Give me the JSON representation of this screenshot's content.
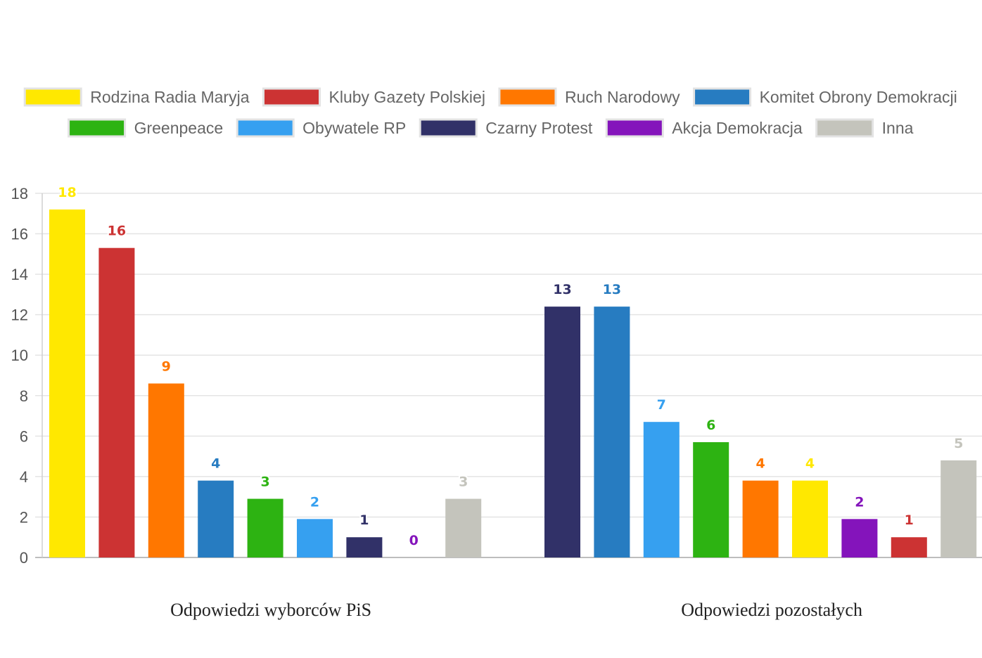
{
  "chart_data": {
    "type": "bar",
    "categories": [
      "Odpowiedzi wyborców PiS",
      "Odpowiedzi pozostałych"
    ],
    "ylim": [
      0,
      18
    ],
    "y_ticks": [
      0,
      2,
      4,
      6,
      8,
      10,
      12,
      14,
      16,
      18
    ],
    "grid": true,
    "legend_position": "top",
    "groups": [
      {
        "category": "Odpowiedzi wyborców PiS",
        "bars": [
          {
            "series": "Rodzina Radia Maryja",
            "value": 17.2,
            "label": "18"
          },
          {
            "series": "Kluby Gazety Polskiej",
            "value": 15.3,
            "label": "16"
          },
          {
            "series": "Ruch Narodowy",
            "value": 8.6,
            "label": "9"
          },
          {
            "series": "Komitet Obrony Demokracji",
            "value": 3.8,
            "label": "4"
          },
          {
            "series": "Greenpeace",
            "value": 2.9,
            "label": "3"
          },
          {
            "series": "Obywatele RP",
            "value": 1.9,
            "label": "2"
          },
          {
            "series": "Czarny Protest",
            "value": 1.0,
            "label": "1"
          },
          {
            "series": "Akcja Demokracja",
            "value": 0,
            "label": "0"
          },
          {
            "series": "Inna",
            "value": 2.9,
            "label": "3"
          }
        ]
      },
      {
        "category": "Odpowiedzi pozostałych",
        "bars": [
          {
            "series": "Czarny Protest",
            "value": 12.4,
            "label": "13"
          },
          {
            "series": "Komitet Obrony Demokracji",
            "value": 12.4,
            "label": "13"
          },
          {
            "series": "Obywatele RP",
            "value": 6.7,
            "label": "7"
          },
          {
            "series": "Greenpeace",
            "value": 5.7,
            "label": "6"
          },
          {
            "series": "Ruch Narodowy",
            "value": 3.8,
            "label": "4"
          },
          {
            "series": "Rodzina Radia Maryja",
            "value": 3.8,
            "label": "4"
          },
          {
            "series": "Akcja Demokracja",
            "value": 1.9,
            "label": "2"
          },
          {
            "series": "Kluby Gazety Polskiej",
            "value": 1.0,
            "label": "1"
          },
          {
            "series": "Inna",
            "value": 4.8,
            "label": "5"
          }
        ]
      }
    ],
    "series": [
      {
        "name": "Rodzina Radia Maryja",
        "color": "#FFE800"
      },
      {
        "name": "Kluby Gazety Polskiej",
        "color": "#CC3333"
      },
      {
        "name": "Ruch Narodowy",
        "color": "#FF7700"
      },
      {
        "name": "Komitet Obrony Demokracji",
        "color": "#277CC1"
      },
      {
        "name": "Greenpeace",
        "color": "#2DB312"
      },
      {
        "name": "Obywatele RP",
        "color": "#36A0F0"
      },
      {
        "name": "Czarny Protest",
        "color": "#313168"
      },
      {
        "name": "Akcja Demokracja",
        "color": "#8414BB"
      },
      {
        "name": "Inna",
        "color": "#C4C4BC"
      }
    ]
  }
}
